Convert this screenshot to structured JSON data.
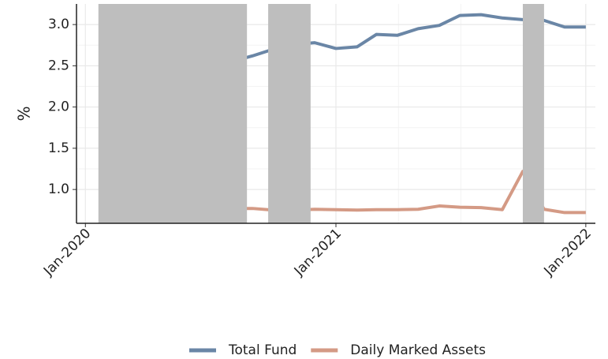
{
  "chart_data": {
    "type": "line",
    "y_label": "%",
    "x": [
      "2020-08",
      "2020-09",
      "2020-10",
      "2020-11",
      "2020-12",
      "2021-01",
      "2021-02",
      "2021-03",
      "2021-04",
      "2021-05",
      "2021-06",
      "2021-07",
      "2021-08",
      "2021-09",
      "2021-10",
      "2021-11",
      "2021-12",
      "2022-01"
    ],
    "series": [
      {
        "name": "Total Fund",
        "color": "#6a86a6",
        "values": [
          2.55,
          2.62,
          2.7,
          2.76,
          2.78,
          2.71,
          2.73,
          2.88,
          2.87,
          2.95,
          2.99,
          3.11,
          3.12,
          3.08,
          3.06,
          3.05,
          2.97,
          2.97
        ]
      },
      {
        "name": "Daily Marked Assets",
        "color": "#d49a85",
        "values": [
          0.77,
          0.77,
          0.75,
          0.75,
          0.76,
          0.755,
          0.75,
          0.755,
          0.755,
          0.76,
          0.8,
          0.785,
          0.78,
          0.755,
          1.22,
          0.76,
          0.72,
          0.72
        ]
      }
    ],
    "shaded_periods": [
      {
        "start": "2020-01-20",
        "end": "2020-08-24"
      },
      {
        "start": "2020-09-24",
        "end": "2020-11-25"
      },
      {
        "start": "2021-10-01",
        "end": "2021-11-01"
      }
    ],
    "shade_color": "#bebebe",
    "xlim": [
      "2019-12-19",
      "2022-01-15"
    ],
    "xticks": [
      {
        "value": "2020-01-01",
        "label": "Jan-2020"
      },
      {
        "value": "2021-01-01",
        "label": "Jan-2021"
      },
      {
        "value": "2022-01-01",
        "label": "Jan-2022"
      }
    ],
    "ylim": [
      0.59,
      3.25
    ],
    "yticks": [
      {
        "value": 1.0,
        "label": "1.0"
      },
      {
        "value": 1.5,
        "label": "1.5"
      },
      {
        "value": 2.0,
        "label": "2.0"
      },
      {
        "value": 2.5,
        "label": "2.5"
      },
      {
        "value": 3.0,
        "label": "3.0"
      }
    ],
    "grid": true,
    "legend": "bottom"
  }
}
